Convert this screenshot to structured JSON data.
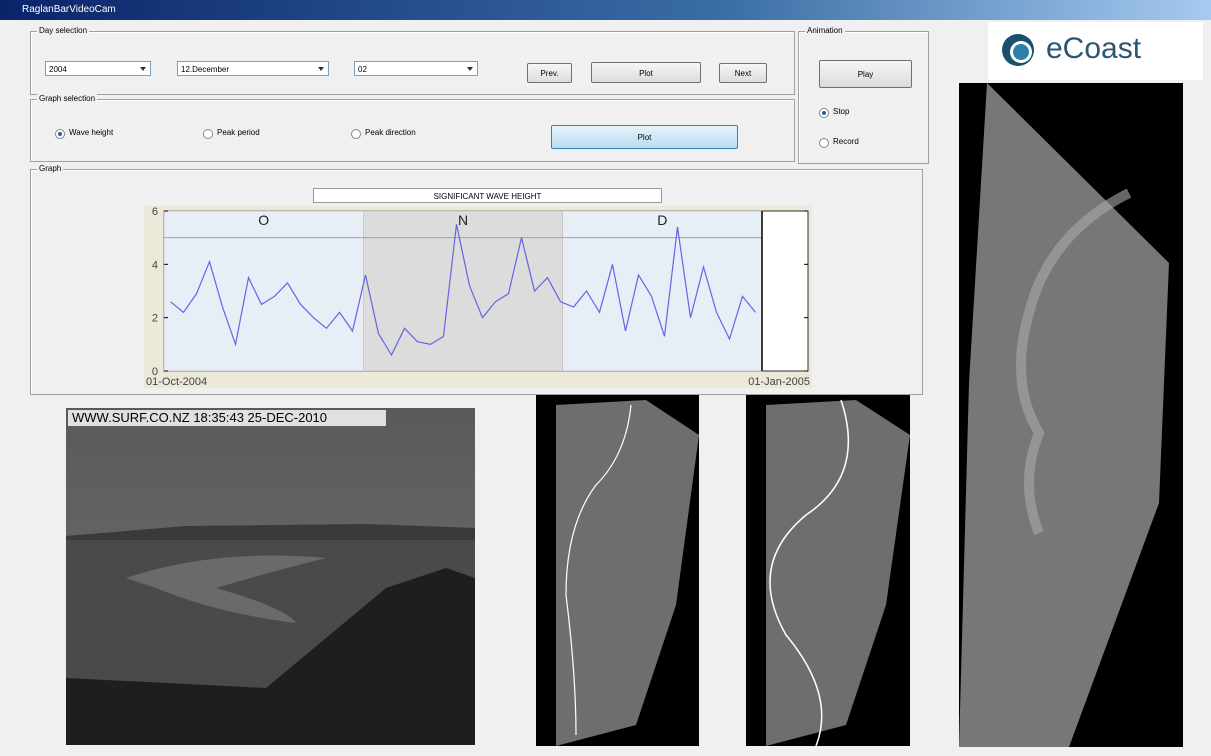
{
  "window": {
    "title": "RaglanBarVideoCam"
  },
  "day_selection": {
    "label": "Day selection",
    "year": "2004",
    "month": "12.December",
    "day": "02",
    "buttons": [
      "Prev.",
      "Plot",
      "Next"
    ]
  },
  "graph_selection": {
    "label": "Graph selection",
    "options": [
      "Wave height",
      "Peak period",
      "Peak direction"
    ],
    "selected": 0,
    "button": "Plot"
  },
  "animation": {
    "label": "Animation",
    "button": "Play",
    "options": [
      "Stop",
      "Record"
    ],
    "selected": 0
  },
  "graph": {
    "label": "Graph",
    "title": "SIGNIFICANT WAVE HEIGHT",
    "ylim": [
      0,
      6
    ],
    "yticks": [
      0,
      2,
      4,
      6
    ],
    "months": [
      "O",
      "N",
      "D"
    ],
    "xlabels": [
      "01-Oct-2004",
      "01-Jan-2005"
    ],
    "reference_line": 5,
    "values": [
      2.6,
      2.2,
      2.9,
      4.1,
      2.4,
      1.0,
      3.5,
      2.5,
      2.8,
      3.3,
      2.5,
      2.0,
      1.6,
      2.2,
      1.5,
      3.6,
      1.4,
      0.6,
      1.6,
      1.1,
      1.0,
      1.3,
      5.5,
      3.2,
      2.0,
      2.6,
      2.9,
      5.0,
      3.0,
      3.5,
      2.6,
      2.4,
      3.0,
      2.2,
      4.0,
      1.5,
      3.6,
      2.8,
      1.3,
      5.4,
      2.0,
      3.9,
      2.2,
      1.2,
      2.8,
      2.2
    ]
  },
  "logo": "eCoast",
  "webcam_caption": "WWW.SURF.CO.NZ 18:35:43 25-DEC-2010"
}
